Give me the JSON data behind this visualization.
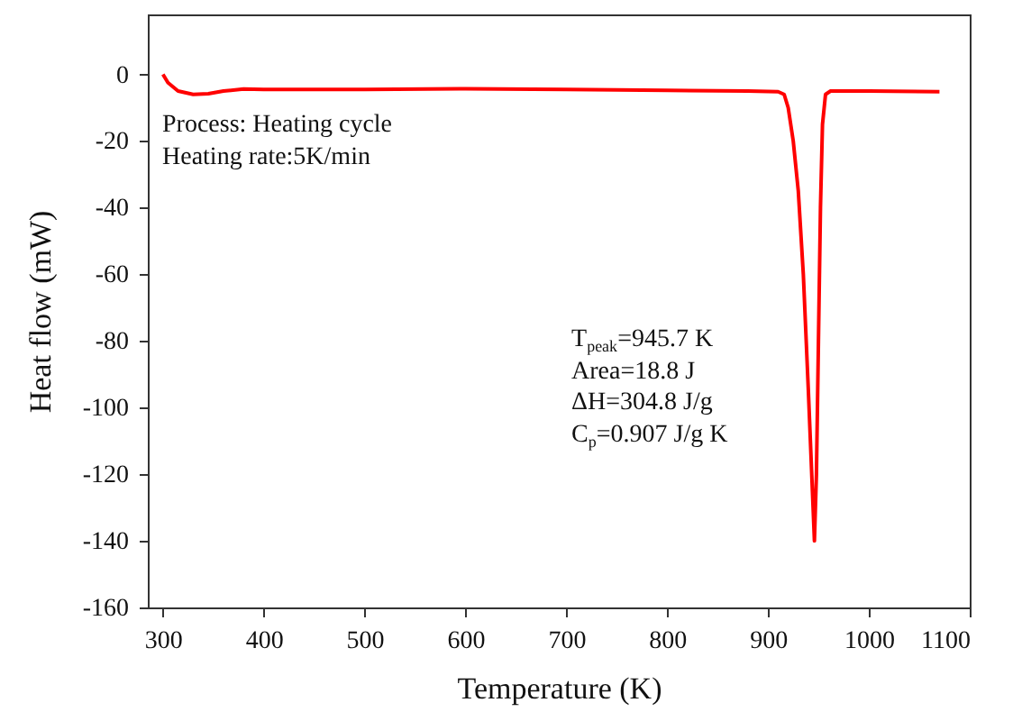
{
  "chart_data": {
    "type": "line",
    "xlabel": "Temperature (K)",
    "ylabel": "Heat flow (mW)",
    "x": [
      300,
      305,
      315,
      330,
      345,
      360,
      380,
      400,
      500,
      600,
      700,
      800,
      880,
      910,
      916,
      920,
      925,
      930,
      935,
      940,
      944,
      946,
      948,
      950,
      952,
      954,
      957,
      962,
      1000,
      1070
    ],
    "series": [
      {
        "color": "#ff0000",
        "values": [
          0,
          -2.5,
          -5,
          -6,
          -5.8,
          -5,
          -4.4,
          -4.5,
          -4.5,
          -4.3,
          -4.5,
          -4.8,
          -5,
          -5.2,
          -6,
          -10,
          -20,
          -35,
          -60,
          -95,
          -125,
          -140,
          -120,
          -80,
          -40,
          -15,
          -6,
          -5,
          -5,
          -5.2
        ]
      }
    ],
    "xlim": [
      285,
      1100
    ],
    "xticks": [
      300,
      400,
      500,
      600,
      700,
      800,
      900,
      1000,
      1100
    ],
    "ylim": [
      -160,
      18
    ],
    "yticks": [
      -160,
      -140,
      -120,
      -100,
      -80,
      -60,
      -40,
      -20,
      0
    ],
    "annotations": [
      "Process: Heating cycle",
      "Heating rate:5K/min",
      "T$_{peak}$=945.7 K",
      "Area=18.8 J",
      "ΔH=304.8 J/g",
      "C$_{p}$=0.907 J/g K"
    ]
  }
}
